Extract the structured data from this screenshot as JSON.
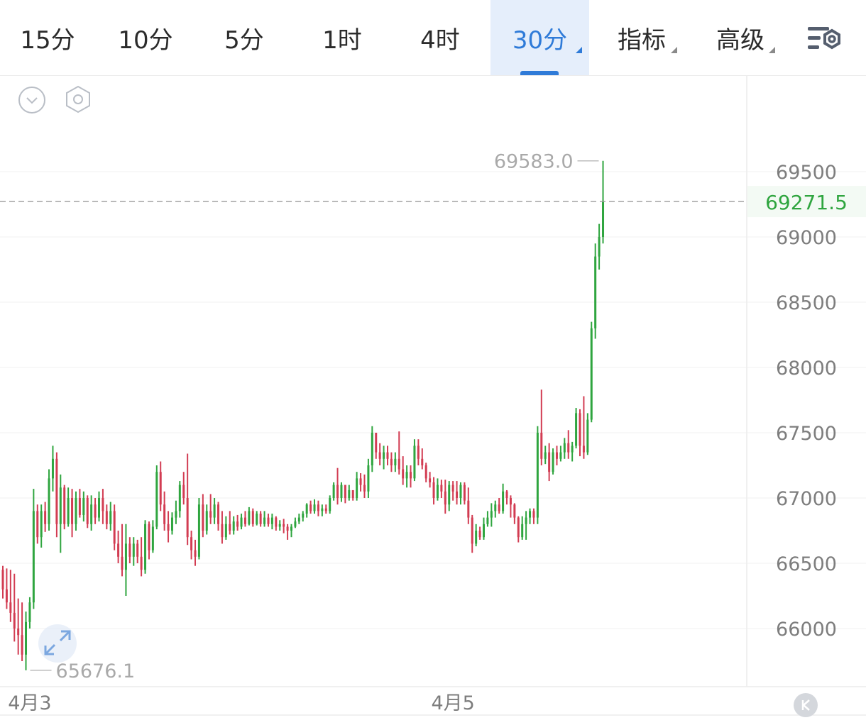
{
  "toolbar": {
    "tabs": [
      {
        "label": "15分",
        "active": false,
        "menu": false
      },
      {
        "label": "10分",
        "active": false,
        "menu": false
      },
      {
        "label": "5分",
        "active": false,
        "menu": false
      },
      {
        "label": "1时",
        "active": false,
        "menu": false
      },
      {
        "label": "4时",
        "active": false,
        "menu": false
      },
      {
        "label": "30分",
        "active": true,
        "menu": true
      },
      {
        "label": "指标",
        "active": false,
        "menu": true
      },
      {
        "label": "高级",
        "active": false,
        "menu": true
      }
    ],
    "settings_icon": "chart-settings-icon"
  },
  "chart_data": {
    "type": "ohlc",
    "ylim": [
      65500,
      69850
    ],
    "y_ticks": [
      "69500",
      "69000",
      "68500",
      "68000",
      "67500",
      "67000",
      "66500",
      "66000"
    ],
    "x_labels": [
      {
        "label": "4月3",
        "index": 7
      },
      {
        "label": "4月5",
        "index": 117
      }
    ],
    "current_price": "69271.5",
    "max_label": "69583.0",
    "min_label": "65676.1",
    "colors": {
      "up": "#2fa53f",
      "down": "#d23c52",
      "current": "#2fa53f",
      "grid": "#f0f0f0"
    },
    "candles": [
      [
        66450,
        66480,
        66230,
        66300
      ],
      [
        66300,
        66460,
        66150,
        66200
      ],
      [
        66200,
        66450,
        66050,
        66120
      ],
      [
        66120,
        66420,
        65900,
        66000
      ],
      [
        66000,
        66230,
        65800,
        65950
      ],
      [
        65950,
        66200,
        65750,
        65800
      ],
      [
        65800,
        66130,
        65680,
        66050
      ],
      [
        66050,
        66240,
        66000,
        66200
      ],
      [
        66200,
        67070,
        66150,
        66900
      ],
      [
        66900,
        66950,
        66650,
        66700
      ],
      [
        66700,
        66950,
        66620,
        66900
      ],
      [
        66900,
        66970,
        66740,
        66800
      ],
      [
        66800,
        67220,
        66750,
        67150
      ],
      [
        67150,
        67400,
        67050,
        67300
      ],
      [
        67300,
        67350,
        66700,
        66800
      ],
      [
        66800,
        67180,
        66580,
        67080
      ],
      [
        67080,
        67100,
        66760,
        66800
      ],
      [
        66800,
        67080,
        66780,
        67000
      ],
      [
        67000,
        67070,
        66700,
        66800
      ],
      [
        66800,
        67050,
        66750,
        67000
      ],
      [
        67000,
        67070,
        66850,
        66870
      ],
      [
        66870,
        67050,
        66820,
        67000
      ],
      [
        67000,
        67020,
        66770,
        66800
      ],
      [
        66800,
        67020,
        66750,
        66950
      ],
      [
        66950,
        67000,
        66800,
        66850
      ],
      [
        66850,
        67050,
        66820,
        67000
      ],
      [
        67000,
        67070,
        66800,
        66900
      ],
      [
        66900,
        66950,
        66760,
        66800
      ],
      [
        66800,
        66970,
        66750,
        66900
      ],
      [
        66900,
        66950,
        66600,
        66650
      ],
      [
        66650,
        66750,
        66500,
        66550
      ],
      [
        66550,
        66800,
        66400,
        66450
      ],
      [
        66450,
        66800,
        66250,
        66650
      ],
      [
        66650,
        66700,
        66500,
        66550
      ],
      [
        66550,
        66700,
        66480,
        66650
      ],
      [
        66650,
        66680,
        66500,
        66550
      ],
      [
        66550,
        66700,
        66400,
        66450
      ],
      [
        66450,
        66830,
        66420,
        66800
      ],
      [
        66800,
        66820,
        66530,
        66600
      ],
      [
        66600,
        66830,
        66580,
        66780
      ],
      [
        66780,
        67250,
        66760,
        67200
      ],
      [
        67200,
        67280,
        66900,
        66950
      ],
      [
        66950,
        67050,
        66750,
        66800
      ],
      [
        66800,
        66900,
        66660,
        66750
      ],
      [
        66750,
        66890,
        66720,
        66850
      ],
      [
        66850,
        66980,
        66800,
        66900
      ],
      [
        66900,
        67130,
        66850,
        67100
      ],
      [
        67100,
        67200,
        66950,
        67000
      ],
      [
        67000,
        67340,
        66640,
        66700
      ],
      [
        66700,
        66750,
        66530,
        66600
      ],
      [
        66600,
        66680,
        66480,
        66550
      ],
      [
        66550,
        67000,
        66530,
        66950
      ],
      [
        66950,
        67030,
        66700,
        66750
      ],
      [
        66750,
        66950,
        66720,
        66900
      ],
      [
        66900,
        67030,
        66800,
        66850
      ],
      [
        66850,
        67000,
        66800,
        66950
      ],
      [
        66950,
        66970,
        66750,
        66800
      ],
      [
        66800,
        66900,
        66650,
        66700
      ],
      [
        66700,
        66860,
        66680,
        66800
      ],
      [
        66800,
        66900,
        66720,
        66750
      ],
      [
        66750,
        66860,
        66720,
        66820
      ],
      [
        66820,
        66870,
        66750,
        66780
      ],
      [
        66780,
        66880,
        66760,
        66850
      ],
      [
        66850,
        66900,
        66780,
        66800
      ],
      [
        66800,
        66930,
        66790,
        66900
      ],
      [
        66900,
        66920,
        66780,
        66800
      ],
      [
        66800,
        66900,
        66790,
        66880
      ],
      [
        66880,
        66900,
        66780,
        66800
      ],
      [
        66800,
        66900,
        66780,
        66850
      ],
      [
        66850,
        66880,
        66780,
        66800
      ],
      [
        66800,
        66880,
        66760,
        66850
      ],
      [
        66850,
        66860,
        66750,
        66780
      ],
      [
        66780,
        66830,
        66750,
        66800
      ],
      [
        66800,
        66840,
        66730,
        66780
      ],
      [
        66780,
        66800,
        66680,
        66750
      ],
      [
        66750,
        66800,
        66700,
        66780
      ],
      [
        66780,
        66850,
        66770,
        66820
      ],
      [
        66820,
        66880,
        66800,
        66850
      ],
      [
        66850,
        66900,
        66820,
        66880
      ],
      [
        66880,
        66960,
        66850,
        66950
      ],
      [
        66950,
        66980,
        66880,
        66900
      ],
      [
        66900,
        66990,
        66880,
        66950
      ],
      [
        66950,
        66980,
        66860,
        66900
      ],
      [
        66900,
        66950,
        66860,
        66920
      ],
      [
        66920,
        66950,
        66880,
        66900
      ],
      [
        66900,
        67020,
        66880,
        67000
      ],
      [
        67000,
        67120,
        66980,
        67100
      ],
      [
        67100,
        67230,
        66950,
        67000
      ],
      [
        67000,
        67120,
        66970,
        67100
      ],
      [
        67100,
        67100,
        66960,
        67000
      ],
      [
        67000,
        67100,
        66980,
        67060
      ],
      [
        67060,
        67060,
        66980,
        67000
      ],
      [
        67000,
        67200,
        66980,
        67150
      ],
      [
        67150,
        67190,
        67050,
        67100
      ],
      [
        67100,
        67180,
        67000,
        67050
      ],
      [
        67050,
        67300,
        67000,
        67250
      ],
      [
        67250,
        67550,
        67200,
        67500
      ],
      [
        67500,
        67500,
        67300,
        67350
      ],
      [
        67350,
        67420,
        67250,
        67300
      ],
      [
        67300,
        67400,
        67220,
        67350
      ],
      [
        67350,
        67400,
        67250,
        67300
      ],
      [
        67300,
        67350,
        67200,
        67250
      ],
      [
        67250,
        67350,
        67200,
        67300
      ],
      [
        67300,
        67510,
        67180,
        67220
      ],
      [
        67220,
        67320,
        67100,
        67150
      ],
      [
        67150,
        67250,
        67080,
        67200
      ],
      [
        67200,
        67250,
        67080,
        67150
      ],
      [
        67150,
        67450,
        67130,
        67400
      ],
      [
        67400,
        67450,
        67250,
        67300
      ],
      [
        67300,
        67380,
        67220,
        67250
      ],
      [
        67250,
        67270,
        67120,
        67150
      ],
      [
        67150,
        67200,
        67080,
        67120
      ],
      [
        67120,
        67160,
        66950,
        67000
      ],
      [
        67000,
        67150,
        66980,
        67100
      ],
      [
        67100,
        67140,
        67000,
        67050
      ],
      [
        67050,
        67140,
        66880,
        66950
      ],
      [
        66950,
        67130,
        66900,
        67100
      ],
      [
        67100,
        67130,
        66980,
        67050
      ],
      [
        67050,
        67130,
        66950,
        67000
      ],
      [
        67000,
        67120,
        66950,
        67100
      ],
      [
        67100,
        67120,
        66950,
        66980
      ],
      [
        66980,
        67080,
        66800,
        66850
      ],
      [
        66850,
        66870,
        66580,
        66650
      ],
      [
        66650,
        66800,
        66630,
        66750
      ],
      [
        66750,
        66780,
        66680,
        66700
      ],
      [
        66700,
        66850,
        66680,
        66800
      ],
      [
        66800,
        66900,
        66780,
        66850
      ],
      [
        66850,
        66960,
        66780,
        66900
      ],
      [
        66900,
        66980,
        66850,
        66950
      ],
      [
        66950,
        67000,
        66880,
        66900
      ],
      [
        66900,
        67110,
        66880,
        67050
      ],
      [
        67050,
        67060,
        66950,
        67000
      ],
      [
        67000,
        67020,
        66850,
        66950
      ],
      [
        66950,
        66960,
        66800,
        66850
      ],
      [
        66850,
        66860,
        66660,
        66700
      ],
      [
        66700,
        66860,
        66680,
        66800
      ],
      [
        66800,
        66900,
        66680,
        66850
      ],
      [
        66850,
        66920,
        66800,
        66900
      ],
      [
        66900,
        66920,
        66800,
        66850
      ],
      [
        66850,
        67550,
        66800,
        67500
      ],
      [
        67500,
        67830,
        67250,
        67300
      ],
      [
        67300,
        67400,
        67260,
        67350
      ],
      [
        67350,
        67420,
        67130,
        67200
      ],
      [
        67200,
        67380,
        67180,
        67350
      ],
      [
        67350,
        67400,
        67250,
        67300
      ],
      [
        67300,
        67400,
        67280,
        67350
      ],
      [
        67350,
        67460,
        67300,
        67420
      ],
      [
        67420,
        67520,
        67300,
        67350
      ],
      [
        67350,
        67430,
        67280,
        67400
      ],
      [
        67400,
        67690,
        67380,
        67650
      ],
      [
        67650,
        67680,
        67320,
        67400
      ],
      [
        67400,
        67780,
        67300,
        67350
      ],
      [
        67350,
        67650,
        67330,
        67600
      ],
      [
        67600,
        68350,
        67580,
        68300
      ],
      [
        68300,
        68950,
        68220,
        68850
      ],
      [
        68850,
        69100,
        68750,
        69000
      ],
      [
        69000,
        69583,
        68950,
        69271.5
      ]
    ]
  }
}
